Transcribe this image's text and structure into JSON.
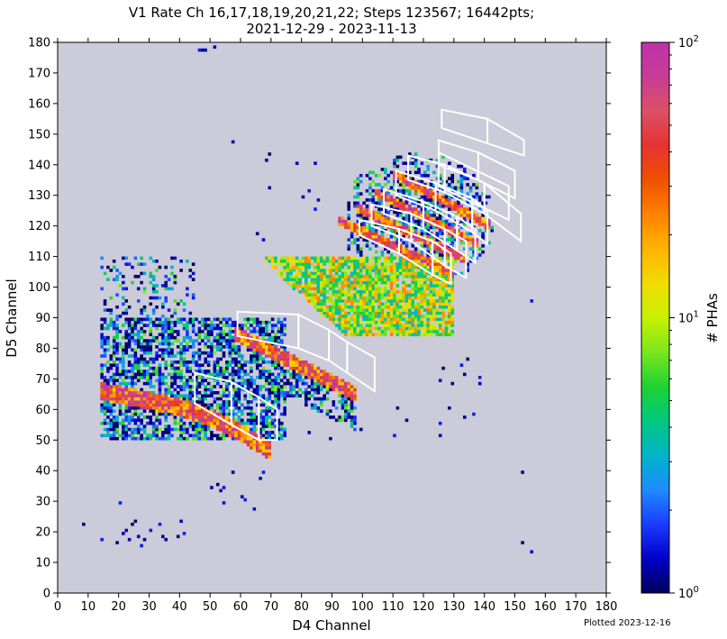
{
  "chart_data": {
    "type": "heatmap",
    "title_line1": "V1 Rate Ch 16,17,18,19,20,21,22; Steps 123567; 16442pts;",
    "title_line2": "2021-12-29 - 2023-11-13",
    "xlabel": "D4 Channel",
    "ylabel": "D5 Channel",
    "xlim": [
      0,
      180
    ],
    "ylim": [
      0,
      180
    ],
    "xticks": [
      0,
      10,
      20,
      30,
      40,
      50,
      60,
      70,
      80,
      90,
      100,
      110,
      120,
      130,
      140,
      150,
      160,
      170,
      180
    ],
    "yticks": [
      0,
      10,
      20,
      30,
      40,
      50,
      60,
      70,
      80,
      90,
      100,
      110,
      120,
      130,
      140,
      150,
      160,
      170,
      180
    ],
    "grid": false,
    "background_color": "#cbcbd9",
    "colorbar": {
      "label": "# PHAs",
      "scale": "log",
      "range": [
        1,
        100
      ],
      "tick_labels": [
        {
          "base": "10",
          "exp": "0",
          "value": 1
        },
        {
          "base": "10",
          "exp": "1",
          "value": 10
        },
        {
          "base": "10",
          "exp": "2",
          "value": 100
        }
      ],
      "colors": [
        "#00005a",
        "#0000c8",
        "#1a3cff",
        "#1e8cff",
        "#00b4c8",
        "#00c880",
        "#1ed232",
        "#7be61e",
        "#c8f000",
        "#f0dc00",
        "#ffb400",
        "#ff8200",
        "#f05000",
        "#e63232",
        "#dc5064",
        "#c83c96",
        "#be32aa"
      ]
    },
    "boxes": [
      [
        [
          59,
          92
        ],
        [
          79,
          91
        ],
        [
          79,
          80
        ],
        [
          59,
          84
        ]
      ],
      [
        [
          79,
          91
        ],
        [
          89,
          86
        ],
        [
          89,
          76
        ],
        [
          79,
          80
        ]
      ],
      [
        [
          89,
          86
        ],
        [
          95,
          82
        ],
        [
          95,
          72
        ],
        [
          89,
          76
        ]
      ],
      [
        [
          95,
          82
        ],
        [
          104,
          77
        ],
        [
          104,
          66
        ],
        [
          95,
          72
        ]
      ],
      [
        [
          45,
          72
        ],
        [
          57,
          69
        ],
        [
          57,
          55
        ],
        [
          45,
          62
        ]
      ],
      [
        [
          57,
          69
        ],
        [
          66,
          64
        ],
        [
          66,
          50
        ],
        [
          57,
          55
        ]
      ],
      [
        [
          66,
          64
        ],
        [
          72,
          60
        ],
        [
          72,
          50
        ],
        [
          66,
          50
        ]
      ],
      [
        [
          99,
          122
        ],
        [
          112,
          119
        ],
        [
          112,
          111
        ],
        [
          99,
          117
        ]
      ],
      [
        [
          112,
          119
        ],
        [
          123,
          115
        ],
        [
          123,
          104
        ],
        [
          112,
          111
        ]
      ],
      [
        [
          123,
          115
        ],
        [
          129,
          111
        ],
        [
          129,
          101
        ],
        [
          123,
          104
        ]
      ],
      [
        [
          103,
          127
        ],
        [
          116,
          124
        ],
        [
          116,
          115
        ],
        [
          103,
          120
        ]
      ],
      [
        [
          116,
          124
        ],
        [
          127,
          119
        ],
        [
          127,
          107
        ],
        [
          116,
          115
        ]
      ],
      [
        [
          127,
          119
        ],
        [
          134,
          115
        ],
        [
          134,
          103
        ],
        [
          127,
          107
        ]
      ],
      [
        [
          107,
          132
        ],
        [
          120,
          128
        ],
        [
          120,
          119
        ],
        [
          107,
          124
        ]
      ],
      [
        [
          120,
          128
        ],
        [
          131,
          123
        ],
        [
          131,
          112
        ],
        [
          120,
          119
        ]
      ],
      [
        [
          131,
          123
        ],
        [
          137,
          119
        ],
        [
          137,
          108
        ],
        [
          131,
          112
        ]
      ],
      [
        [
          111,
          138
        ],
        [
          124,
          134
        ],
        [
          124,
          125
        ],
        [
          111,
          130
        ]
      ],
      [
        [
          124,
          134
        ],
        [
          136,
          129
        ],
        [
          136,
          118
        ],
        [
          124,
          125
        ]
      ],
      [
        [
          136,
          129
        ],
        [
          141,
          125
        ],
        [
          141,
          114
        ],
        [
          136,
          118
        ]
      ],
      [
        [
          115,
          143
        ],
        [
          127,
          140
        ],
        [
          127,
          131
        ],
        [
          115,
          135
        ]
      ],
      [
        [
          127,
          140
        ],
        [
          140,
          134
        ],
        [
          140,
          124
        ],
        [
          127,
          131
        ]
      ],
      [
        [
          140,
          134
        ],
        [
          152,
          124
        ],
        [
          152,
          115
        ],
        [
          140,
          124
        ]
      ],
      [
        [
          125,
          148
        ],
        [
          138,
          144
        ],
        [
          138,
          135
        ],
        [
          125,
          140
        ]
      ],
      [
        [
          138,
          144
        ],
        [
          150,
          138
        ],
        [
          150,
          129
        ],
        [
          138,
          135
        ]
      ],
      [
        [
          126,
          158
        ],
        [
          141,
          155
        ],
        [
          141,
          147
        ],
        [
          126,
          152
        ]
      ],
      [
        [
          141,
          155
        ],
        [
          153,
          148
        ],
        [
          153,
          143
        ],
        [
          141,
          147
        ]
      ],
      [
        [
          125,
          144
        ],
        [
          148,
          133
        ],
        [
          148,
          122
        ],
        [
          125,
          133
        ]
      ]
    ]
  },
  "footer": {
    "plotted": "Plotted 2023-12-16"
  }
}
